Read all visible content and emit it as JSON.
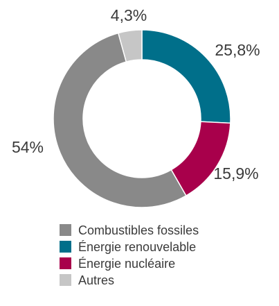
{
  "chart_data": {
    "type": "pie",
    "variant": "donut",
    "slices": [
      {
        "label": "Énergie renouvelable",
        "value": 25.8,
        "display": "25,8%",
        "color": "#006f8a"
      },
      {
        "label": "Énergie nucléaire",
        "value": 15.9,
        "display": "15,9%",
        "color": "#a8004b"
      },
      {
        "label": "Combustibles fossiles",
        "value": 54.0,
        "display": "54%",
        "color": "#898989"
      },
      {
        "label": "Autres",
        "value": 4.3,
        "display": "4,3%",
        "color": "#c6c6c6"
      }
    ],
    "legend": {
      "placement": "bottom",
      "items": [
        {
          "label": "Combustibles fossiles",
          "color": "#898989"
        },
        {
          "label": "Énergie renouvelable",
          "color": "#006f8a"
        },
        {
          "label": "Énergie nucléaire",
          "color": "#a8004b"
        },
        {
          "label": "Autres",
          "color": "#c6c6c6"
        }
      ]
    }
  }
}
